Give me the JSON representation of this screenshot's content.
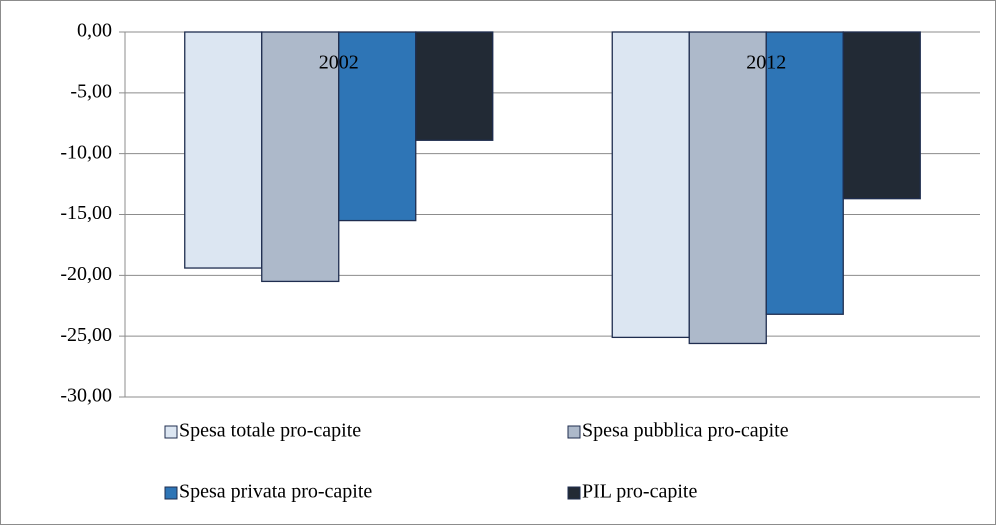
{
  "chart_data": {
    "type": "bar",
    "categories": [
      "2002",
      "2012"
    ],
    "series": [
      {
        "name": "Spesa totale pro-capite",
        "color": "#dce6f2",
        "values": [
          -19.4,
          -25.1
        ]
      },
      {
        "name": "Spesa pubblica pro-capite",
        "color": "#adb9ca",
        "values": [
          -20.5,
          -25.6
        ]
      },
      {
        "name": "Spesa privata pro-capite",
        "color": "#2e75b6",
        "values": [
          -15.5,
          -23.2
        ]
      },
      {
        "name": "PIL pro-capite",
        "color": "#222a35",
        "values": [
          -8.9,
          -13.7
        ]
      }
    ],
    "ylim": [
      -30,
      0
    ],
    "yticks": [
      {
        "value": 0,
        "label": "0,00"
      },
      {
        "value": -5,
        "label": "-5,00"
      },
      {
        "value": -10,
        "label": "-10,00"
      },
      {
        "value": -15,
        "label": "-15,00"
      },
      {
        "value": -20,
        "label": "-20,00"
      },
      {
        "value": -25,
        "label": "-25,00"
      },
      {
        "value": -30,
        "label": "-30,00"
      }
    ],
    "grid": true
  }
}
